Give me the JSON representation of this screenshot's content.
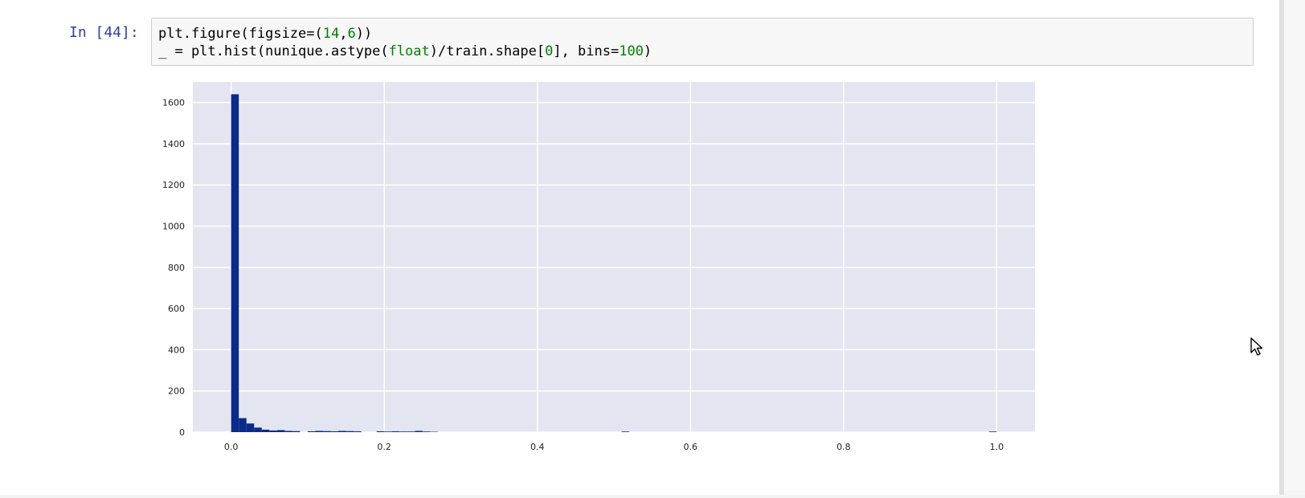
{
  "cell": {
    "prompt": "In [44]:",
    "code": {
      "line1": {
        "a": "plt.figure(figsize=(",
        "n1": "14",
        "b": ",",
        "n2": "6",
        "c": "))"
      },
      "line2": {
        "a": "_ = plt.hist(nunique.astype(",
        "k1": "float",
        "b": ")/train.shape[",
        "n1": "0",
        "c": "], bins=",
        "n2": "100",
        "d": ")"
      }
    }
  },
  "chart_data": {
    "type": "bar",
    "xlim": [
      -0.05,
      1.05
    ],
    "ylim": [
      0,
      1700
    ],
    "x_ticks": [
      0.0,
      0.2,
      0.4,
      0.6,
      0.8,
      1.0
    ],
    "x_tick_labels": [
      "0.0",
      "0.2",
      "0.4",
      "0.6",
      "0.8",
      "1.0"
    ],
    "y_ticks": [
      0,
      200,
      400,
      600,
      800,
      1000,
      1200,
      1400,
      1600
    ],
    "y_tick_labels": [
      "0",
      "200",
      "400",
      "600",
      "800",
      "1000",
      "1200",
      "1400",
      "1600"
    ],
    "grid": true,
    "bin_width": 0.01,
    "bins": [
      {
        "x": 0.0,
        "y": 1640
      },
      {
        "x": 0.01,
        "y": 68
      },
      {
        "x": 0.02,
        "y": 42
      },
      {
        "x": 0.03,
        "y": 22
      },
      {
        "x": 0.04,
        "y": 12
      },
      {
        "x": 0.05,
        "y": 8
      },
      {
        "x": 0.06,
        "y": 10
      },
      {
        "x": 0.07,
        "y": 6
      },
      {
        "x": 0.08,
        "y": 5
      },
      {
        "x": 0.1,
        "y": 4
      },
      {
        "x": 0.11,
        "y": 6
      },
      {
        "x": 0.12,
        "y": 5
      },
      {
        "x": 0.13,
        "y": 4
      },
      {
        "x": 0.14,
        "y": 6
      },
      {
        "x": 0.15,
        "y": 5
      },
      {
        "x": 0.16,
        "y": 4
      },
      {
        "x": 0.19,
        "y": 4
      },
      {
        "x": 0.2,
        "y": 3
      },
      {
        "x": 0.21,
        "y": 4
      },
      {
        "x": 0.22,
        "y": 3
      },
      {
        "x": 0.23,
        "y": 3
      },
      {
        "x": 0.24,
        "y": 6
      },
      {
        "x": 0.25,
        "y": 3
      },
      {
        "x": 0.26,
        "y": 2
      },
      {
        "x": 0.51,
        "y": 3
      },
      {
        "x": 0.99,
        "y": 3
      }
    ],
    "colors": {
      "bar": "#0b2a8a",
      "background": "#e3e6f0",
      "grid": "#ffffff"
    }
  }
}
